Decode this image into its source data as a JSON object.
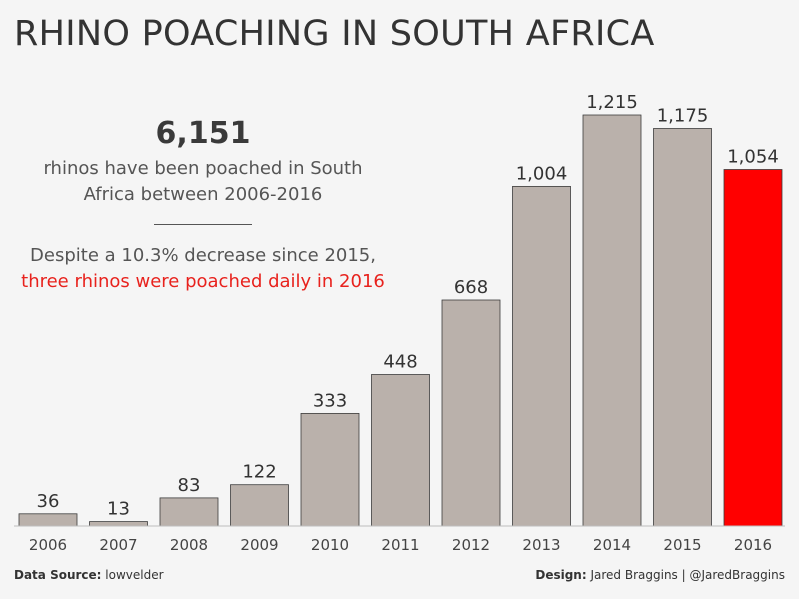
{
  "title": "RHINO POACHING IN SOUTH AFRICA",
  "callout": {
    "total": "6,151",
    "line1": "rhinos have been poached in South",
    "line2": "Africa between 2006-2016",
    "line3": "Despite a 10.3% decrease since 2015,",
    "line4_red": "three rhinos were poached daily in 2016"
  },
  "footer": {
    "source_label": "Data Source:",
    "source_value": "lowvelder",
    "design_label": "Design:",
    "design_value": "Jared Braggins | @JaredBraggins"
  },
  "colors": {
    "bar": "#bab1ab",
    "highlight": "#ff0000",
    "accent_text": "#e8221d"
  },
  "chart_data": {
    "type": "bar",
    "categories": [
      "2006",
      "2007",
      "2008",
      "2009",
      "2010",
      "2011",
      "2012",
      "2013",
      "2014",
      "2015",
      "2016"
    ],
    "values": [
      36,
      13,
      83,
      122,
      333,
      448,
      668,
      1004,
      1215,
      1175,
      1054
    ],
    "value_labels": [
      "36",
      "13",
      "83",
      "122",
      "333",
      "448",
      "668",
      "1,004",
      "1,215",
      "1,175",
      "1,054"
    ],
    "highlight_category": "2016",
    "title": "RHINO POACHING IN SOUTH AFRICA",
    "xlabel": "",
    "ylabel": "",
    "ylim": [
      0,
      1215
    ],
    "grid": false,
    "legend": "none"
  }
}
